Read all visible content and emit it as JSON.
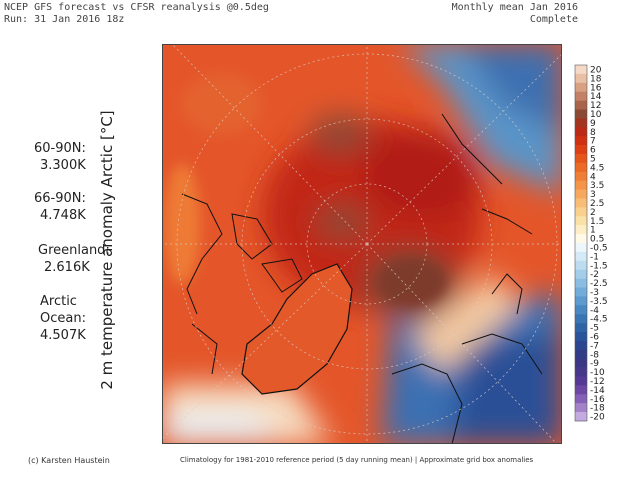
{
  "header": {
    "title_line1": "NCEP GFS forecast vs CFSR reanalysis @0.5deg",
    "title_line2": "Run: 31 Jan 2016 18z",
    "period": "Monthly mean Jan 2016",
    "status": "Complete"
  },
  "ylabel": "2 m temperature anomaly Arctic [°C]",
  "stats": [
    {
      "region": "60-90N:",
      "value": "3.300K"
    },
    {
      "region": "66-90N:",
      "value": "4.748K"
    },
    {
      "region": "Greenland:",
      "value": "2.616K"
    },
    {
      "region_line1": "Arctic",
      "region_line2": "Ocean:",
      "value": "4.507K"
    }
  ],
  "colorbar": {
    "labels": [
      "20",
      "18",
      "16",
      "14",
      "12",
      "10",
      "9",
      "8",
      "7",
      "6",
      "5",
      "4.5",
      "4",
      "3.5",
      "3",
      "2.5",
      "2",
      "1.5",
      "1",
      "0.5",
      "-0.5",
      "-1",
      "-1.5",
      "-2",
      "-2.5",
      "-3",
      "-3.5",
      "-4",
      "-4.5",
      "-5",
      "-6",
      "-7",
      "-8",
      "-9",
      "-10",
      "-12",
      "-14",
      "-16",
      "-18",
      "-20"
    ],
    "colors": [
      "#f3d9c6",
      "#e9c0a6",
      "#d9a184",
      "#c38265",
      "#a8654c",
      "#8b4a36",
      "#a33520",
      "#bb2a14",
      "#cf3012",
      "#dd4014",
      "#e4561c",
      "#ea6a26",
      "#ef7f36",
      "#f39448",
      "#f6a95e",
      "#f8bd76",
      "#fad08f",
      "#fbe0a8",
      "#fdeec6",
      "#fff9e8",
      "#edf6fb",
      "#d5eaf6",
      "#bddcf0",
      "#a4cdea",
      "#8bbde2",
      "#73acd9",
      "#5d9acd",
      "#4a88c1",
      "#3a76b4",
      "#2e64a6",
      "#2a549a",
      "#2a468e",
      "#303c86",
      "#3a3884",
      "#45378a",
      "#543a95",
      "#6a48a4",
      "#8460b6",
      "#a283ca",
      "#c4abdf"
    ]
  },
  "footer": {
    "credit": "(c) Karsten Haustein",
    "note": "Climatology for 1981-2010 reference period (5 day running mean) | Approximate grid box anomalies"
  }
}
